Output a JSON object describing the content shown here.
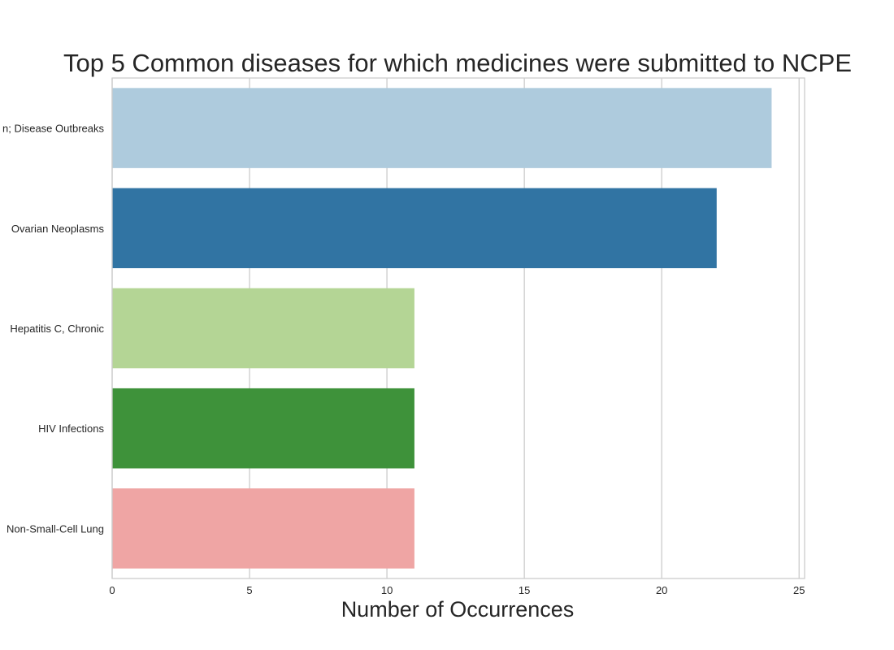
{
  "chart_data": {
    "type": "bar",
    "orientation": "horizontal",
    "title": "Top 5 Common diseases for which medicines were submitted to NCPE",
    "xlabel": "Number of Occurrences",
    "ylabel": "",
    "xlim": [
      0,
      25.2
    ],
    "xticks": [
      0,
      5,
      10,
      15,
      20,
      25
    ],
    "grid": true,
    "categories": [
      "Communicable Diseases; Influenza, Human; Disease Outbreaks",
      "Carcinoma; Breast Neoplasms; Ovarian Neoplasms",
      "Hepatitis C, Chronic",
      "HIV Infections",
      "Carcinoma, Non-Small-Cell Lung"
    ],
    "visible_tick_labels": [
      "n; Disease Outbreaks",
      "Ovarian Neoplasms",
      "Hepatitis C, Chronic",
      "HIV Infections",
      "Non-Small-Cell Lung"
    ],
    "values": [
      24,
      22,
      11,
      11,
      11
    ],
    "colors": [
      "#aecbdd",
      "#3174a3",
      "#b4d595",
      "#3e923a",
      "#efa5a4"
    ]
  }
}
